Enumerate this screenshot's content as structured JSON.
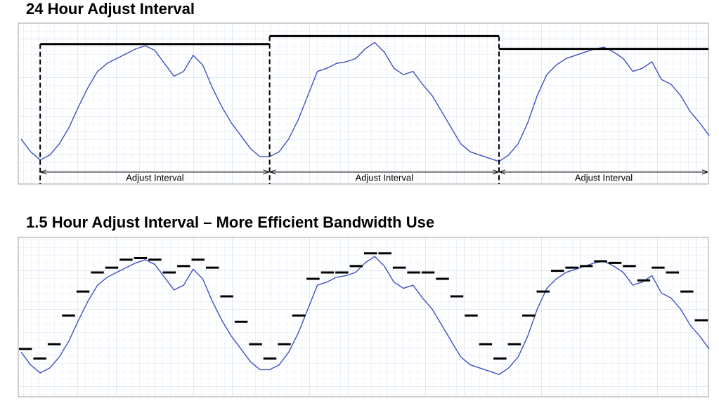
{
  "chart_data": [
    {
      "type": "line",
      "title": "24 Hour Adjust Interval",
      "ylim": [
        0,
        100
      ],
      "series": [
        {
          "type": "line",
          "color": "#3f4fc4",
          "values": [
            28,
            20,
            15,
            18,
            25,
            35,
            48,
            60,
            70,
            75,
            78,
            81,
            84,
            86,
            83,
            75,
            67,
            70,
            80,
            74,
            60,
            48,
            38,
            30,
            22,
            17,
            17,
            20,
            28,
            40,
            55,
            70,
            72,
            75,
            76,
            78,
            84,
            88,
            82,
            72,
            68,
            70,
            62,
            55,
            45,
            35,
            25,
            20,
            18,
            16,
            14,
            18,
            25,
            38,
            55,
            68,
            74,
            78,
            80,
            82,
            84,
            85,
            82,
            78,
            70,
            72,
            76,
            65,
            62,
            55,
            45,
            38,
            30
          ]
        },
        {
          "type": "step",
          "color": "#000000",
          "values": [
            87,
            92,
            84
          ]
        }
      ],
      "annotations": [
        "Adjust Interval",
        "Adjust Interval",
        "Adjust Interval"
      ]
    },
    {
      "type": "line",
      "title": "1.5 Hour Adjust Interval – More Efficient Bandwidth Use",
      "ylim": [
        0,
        100
      ],
      "series": [
        {
          "type": "line",
          "color": "#3f4fc4",
          "values": [
            28,
            20,
            15,
            18,
            25,
            35,
            48,
            60,
            70,
            75,
            78,
            81,
            84,
            86,
            83,
            75,
            67,
            70,
            80,
            74,
            60,
            48,
            38,
            30,
            22,
            17,
            17,
            20,
            28,
            40,
            55,
            70,
            72,
            75,
            76,
            78,
            84,
            88,
            82,
            72,
            68,
            70,
            62,
            55,
            45,
            35,
            25,
            20,
            18,
            16,
            14,
            18,
            25,
            38,
            55,
            68,
            74,
            78,
            80,
            82,
            84,
            85,
            82,
            78,
            70,
            72,
            76,
            65,
            62,
            55,
            45,
            38,
            30
          ]
        },
        {
          "type": "dash",
          "color": "#000000",
          "values": [
            30,
            24,
            33,
            51,
            66,
            78,
            81,
            86,
            87,
            86,
            78,
            82,
            86,
            81,
            63,
            47,
            33,
            24,
            33,
            51,
            74,
            78,
            78,
            82,
            90,
            90,
            81,
            78,
            78,
            74,
            63,
            51,
            33,
            24,
            33,
            51,
            66,
            79,
            81,
            82,
            85,
            84,
            82,
            73,
            81,
            78,
            66,
            48
          ]
        }
      ]
    }
  ]
}
